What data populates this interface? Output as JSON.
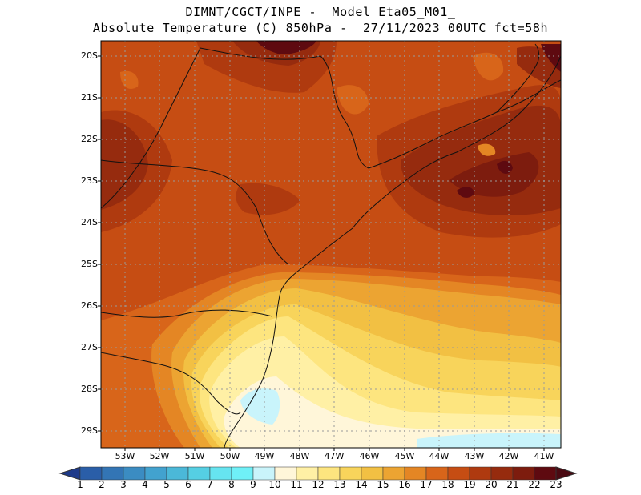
{
  "title": {
    "line1": "DIMNT/CGCT/INPE -  Model Eta05_M01_",
    "line2": "Absolute Temperature (C) 850hPa -  27/11/2023 00UTC fct=58h"
  },
  "map": {
    "lat_labels": [
      "20S",
      "21S",
      "22S",
      "23S",
      "24S",
      "25S",
      "26S",
      "27S",
      "28S",
      "29S"
    ],
    "lon_labels": [
      "53W",
      "52W",
      "51W",
      "50W",
      "49W",
      "48W",
      "47W",
      "46W",
      "45W",
      "44W",
      "43W",
      "42W",
      "41W"
    ],
    "lat_range": [
      -29.5,
      -19.5
    ],
    "lon_range": [
      -53.7,
      -40.6
    ],
    "grid": "dotted"
  },
  "colorbar": {
    "labels": [
      "1",
      "2",
      "3",
      "4",
      "5",
      "6",
      "7",
      "8",
      "9",
      "10",
      "11",
      "12",
      "13",
      "14",
      "15",
      "16",
      "17",
      "18",
      "19",
      "20",
      "21",
      "22",
      "23"
    ],
    "colors": [
      "#24459c",
      "#2a5ea8",
      "#3375b5",
      "#3b8cc2",
      "#42a2cf",
      "#4bb8d8",
      "#55cfe3",
      "#66e4f0",
      "#6ff0f7",
      "#c9f4fb",
      "#fff6d9",
      "#fff0a5",
      "#fde57f",
      "#f8d45b",
      "#f2c043",
      "#eca432",
      "#e48624",
      "#d8651a",
      "#c64d13",
      "#af3a0f",
      "#962b0e",
      "#7d1c0e",
      "#5e0a10"
    ],
    "arrow_left_color": "#1e3a8a",
    "arrow_right_color": "#4a0a12"
  }
}
